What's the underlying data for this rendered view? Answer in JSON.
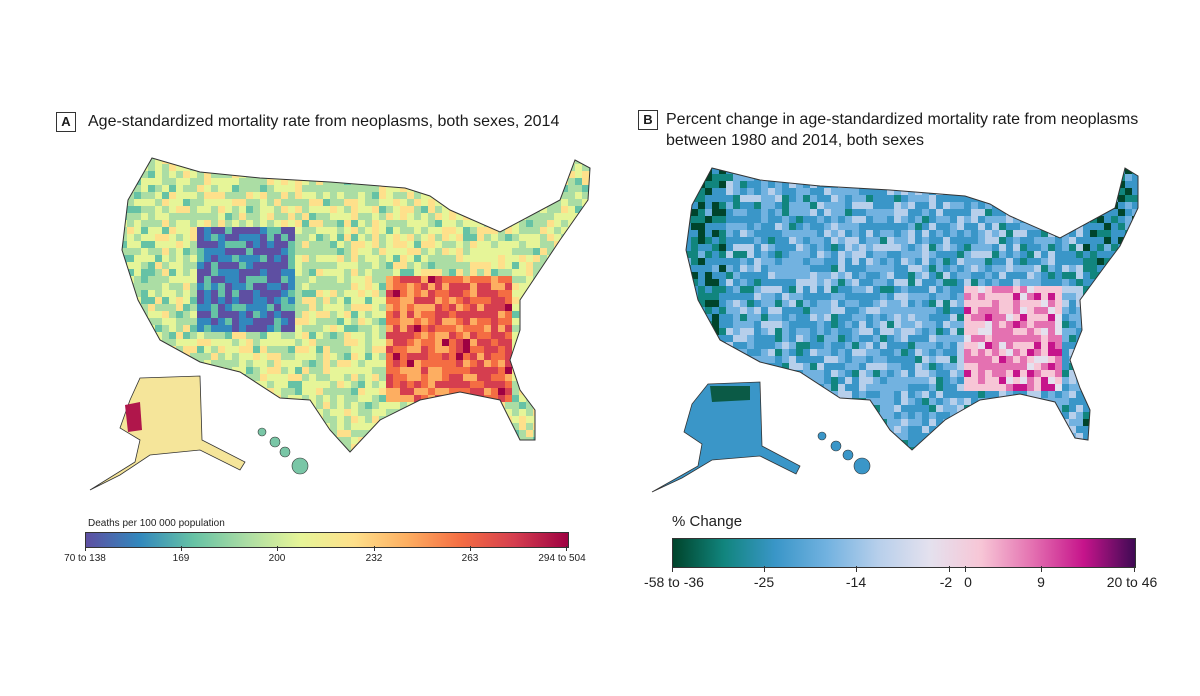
{
  "panel_a": {
    "letter": "A",
    "title": "Age-standardized mortality rate from neoplasms, both sexes, 2014",
    "legend": {
      "title": "Deaths per 100 000 population",
      "labels": [
        "70 to 138",
        "169",
        "200",
        "232",
        "263",
        "294 to 504"
      ],
      "colors": [
        "#5e4fa2",
        "#3288bd",
        "#66c2a5",
        "#abdda4",
        "#e6f598",
        "#fee08b",
        "#fdae61",
        "#f46d43",
        "#d53e4f",
        "#9e0142"
      ]
    }
  },
  "panel_b": {
    "letter": "B",
    "title_line1": "Percent change in age-standardized mortality rate from neoplasms",
    "title_line2": "between 1980 and 2014, both sexes",
    "legend": {
      "title": "% Change",
      "labels": [
        "-58 to -36",
        "-25",
        "-14",
        "-2",
        "0",
        "9",
        "20 to 46"
      ],
      "colors": [
        "#00442b",
        "#11857e",
        "#3a96c8",
        "#72b2e0",
        "#b7cfeb",
        "#e4e1ee",
        "#f7c6d6",
        "#e471b1",
        "#c6148b",
        "#3f0a54"
      ]
    }
  }
}
